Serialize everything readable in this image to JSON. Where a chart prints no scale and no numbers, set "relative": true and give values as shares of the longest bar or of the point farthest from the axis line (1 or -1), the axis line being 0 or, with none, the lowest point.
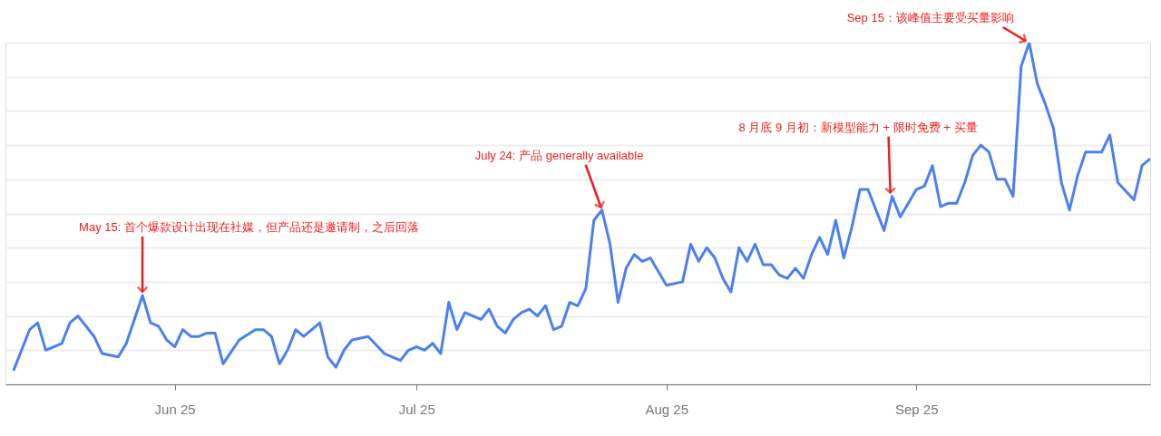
{
  "chart_data": {
    "type": "line",
    "relative": true,
    "grid": "y",
    "legend": false,
    "line_style": "solid",
    "x": [
      "2025-05-12",
      "2025-05-14",
      "2025-05-15",
      "2025-05-16",
      "2025-05-18",
      "2025-05-19",
      "2025-05-20",
      "2025-05-22",
      "2025-05-23",
      "2025-05-25",
      "2025-05-26",
      "2025-05-28",
      "2025-05-29",
      "2025-05-30",
      "2025-05-31",
      "2025-06-01",
      "2025-06-02",
      "2025-06-03",
      "2025-06-04",
      "2025-06-05",
      "2025-06-06",
      "2025-06-07",
      "2025-06-09",
      "2025-06-11",
      "2025-06-12",
      "2025-06-13",
      "2025-06-14",
      "2025-06-15",
      "2025-06-16",
      "2025-06-17",
      "2025-06-18",
      "2025-06-19",
      "2025-06-20",
      "2025-06-21",
      "2025-06-22",
      "2025-06-23",
      "2025-06-25",
      "2025-06-27",
      "2025-06-29",
      "2025-06-30",
      "2025-07-01",
      "2025-07-02",
      "2025-07-03",
      "2025-07-04",
      "2025-07-05",
      "2025-07-06",
      "2025-07-07",
      "2025-07-08",
      "2025-07-09",
      "2025-07-10",
      "2025-07-11",
      "2025-07-12",
      "2025-07-13",
      "2025-07-14",
      "2025-07-15",
      "2025-07-16",
      "2025-07-17",
      "2025-07-18",
      "2025-07-19",
      "2025-07-20",
      "2025-07-21",
      "2025-07-22",
      "2025-07-23",
      "2025-07-24",
      "2025-07-25",
      "2025-07-26",
      "2025-07-27",
      "2025-07-28",
      "2025-07-29",
      "2025-07-30",
      "2025-08-01",
      "2025-08-03",
      "2025-08-04",
      "2025-08-05",
      "2025-08-06",
      "2025-08-07",
      "2025-08-08",
      "2025-08-09",
      "2025-08-10",
      "2025-08-11",
      "2025-08-12",
      "2025-08-13",
      "2025-08-14",
      "2025-08-15",
      "2025-08-16",
      "2025-08-17",
      "2025-08-18",
      "2025-08-19",
      "2025-08-20",
      "2025-08-21",
      "2025-08-22",
      "2025-08-23",
      "2025-08-24",
      "2025-08-25",
      "2025-08-26",
      "2025-08-27",
      "2025-08-28",
      "2025-08-29",
      "2025-08-30",
      "2025-08-31",
      "2025-09-01",
      "2025-09-02",
      "2025-09-03",
      "2025-09-04",
      "2025-09-05",
      "2025-09-06",
      "2025-09-07",
      "2025-09-08",
      "2025-09-09",
      "2025-09-10",
      "2025-09-11",
      "2025-09-12",
      "2025-09-13",
      "2025-09-14",
      "2025-09-15",
      "2025-09-16",
      "2025-09-17",
      "2025-09-18",
      "2025-09-19",
      "2025-09-20",
      "2025-09-21",
      "2025-09-22",
      "2025-09-23",
      "2025-09-24",
      "2025-09-25",
      "2025-09-26",
      "2025-09-28",
      "2025-09-29",
      "2025-09-30"
    ],
    "series": [
      {
        "color": "#4a80f0",
        "values": [
          0.04,
          0.16,
          0.18,
          0.1,
          0.12,
          0.18,
          0.2,
          0.14,
          0.09,
          0.08,
          0.12,
          0.26,
          0.18,
          0.17,
          0.13,
          0.11,
          0.16,
          0.14,
          0.14,
          0.15,
          0.15,
          0.06,
          0.13,
          0.16,
          0.16,
          0.14,
          0.06,
          0.1,
          0.16,
          0.14,
          0.16,
          0.18,
          0.08,
          0.05,
          0.1,
          0.13,
          0.14,
          0.09,
          0.07,
          0.1,
          0.11,
          0.1,
          0.12,
          0.09,
          0.24,
          0.16,
          0.21,
          0.2,
          0.19,
          0.22,
          0.17,
          0.15,
          0.19,
          0.21,
          0.22,
          0.2,
          0.23,
          0.16,
          0.17,
          0.24,
          0.23,
          0.28,
          0.48,
          0.51,
          0.41,
          0.24,
          0.34,
          0.38,
          0.36,
          0.37,
          0.29,
          0.3,
          0.41,
          0.36,
          0.4,
          0.37,
          0.31,
          0.27,
          0.4,
          0.36,
          0.41,
          0.35,
          0.35,
          0.32,
          0.31,
          0.34,
          0.31,
          0.38,
          0.43,
          0.38,
          0.48,
          0.37,
          0.46,
          0.57,
          0.57,
          0.51,
          0.45,
          0.55,
          0.49,
          0.53,
          0.57,
          0.58,
          0.64,
          0.52,
          0.53,
          0.53,
          0.59,
          0.67,
          0.7,
          0.68,
          0.6,
          0.6,
          0.55,
          0.93,
          1,
          0.88,
          0.82,
          0.75,
          0.59,
          0.51,
          0.61,
          0.68,
          0.68,
          0.68,
          0.73,
          0.59,
          0.54,
          0.64,
          0.66
        ]
      }
    ],
    "xlim": [
      "2025-05-11",
      "2025-09-30"
    ],
    "xticks": [
      {
        "value": "2025-06-01",
        "label": "Jun 25"
      },
      {
        "value": "2025-07-01",
        "label": "Jul 25"
      },
      {
        "value": "2025-08-01",
        "label": "Aug 25"
      },
      {
        "value": "2025-09-01",
        "label": "Sep 25"
      }
    ],
    "annotations": [
      {
        "text": "May 15: 首个爆款设计出现在社媒，但产品还是邀请制，之后回落",
        "x": "2025-05-28",
        "y": 0.26
      },
      {
        "text": "July 24: 产品 generally available",
        "x": "2025-07-24",
        "y": 0.51
      },
      {
        "text": "8 月底 9 月初：新模型能力 + 限时免费 + 买量",
        "x": "2025-08-29",
        "y": 0.55
      },
      {
        "text": "Sep 15：该峰值主要受买量影响",
        "x": "2025-09-15",
        "y": 1
      }
    ]
  }
}
